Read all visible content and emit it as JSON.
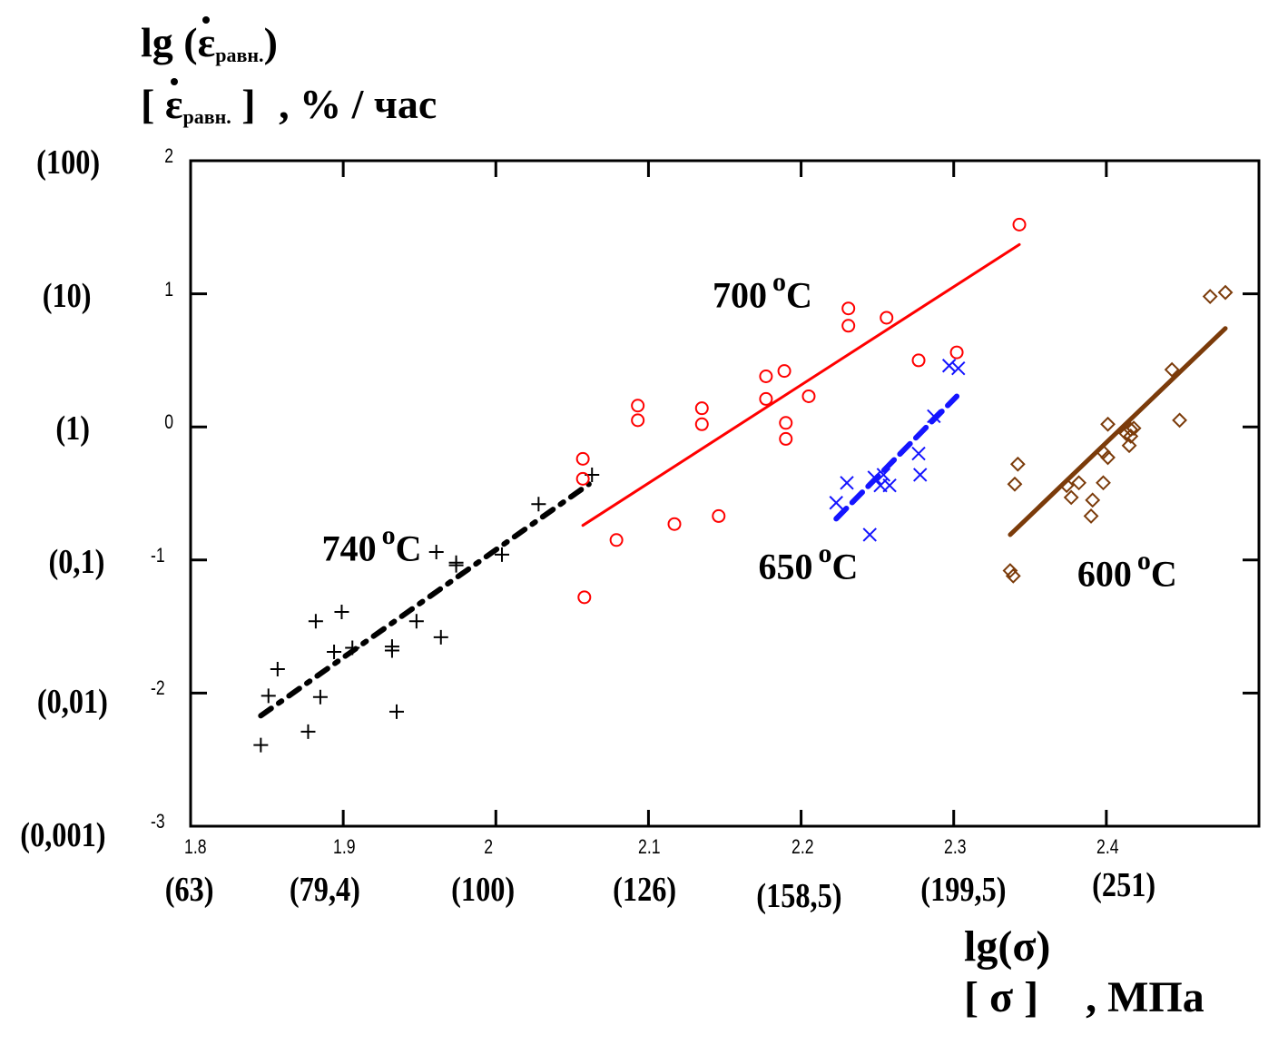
{
  "chart_data": {
    "type": "scatter",
    "title": "",
    "ylabel": {
      "line1_prefix": "lg (",
      "line1_symbol": "ε",
      "line1_sub": "равн.",
      "line1_suffix": ")",
      "line2_open": "[",
      "line2_symbol": "ε",
      "line2_sub": "равн.",
      "line2_close": "]",
      "line2_units": ", % / час"
    },
    "xlabel": {
      "line1": "lg(σ)",
      "line2_bracket": "[ σ ]",
      "line2_units": ", МПа"
    },
    "xlim": [
      1.8,
      2.5
    ],
    "ylim": [
      -3,
      2
    ],
    "grid": false,
    "x_ticks": [
      1.8,
      1.9,
      2.0,
      2.1,
      2.2,
      2.3,
      2.4
    ],
    "x_tick_labels": [
      "1.8",
      "1.9",
      "2",
      "2.1",
      "2.2",
      "2.3",
      "2.4"
    ],
    "x_secondary_labels": [
      "(63)",
      "(79,4)",
      "(100)",
      "(126)",
      "(158,5)",
      "(199,5)",
      "(251)"
    ],
    "y_ticks": [
      2,
      1,
      0,
      -1,
      -2,
      -3
    ],
    "y_tick_labels": [
      "2",
      "1",
      "0",
      "-1",
      "-2",
      "-3"
    ],
    "y_secondary_labels": [
      "(100)",
      "(10)",
      "(1)",
      "(0,1)",
      "(0,01)",
      "(0,001)"
    ],
    "series": [
      {
        "name": "740 °C",
        "label_num": "740",
        "label_unit": "C",
        "label_deg": "o",
        "marker": "plus",
        "color": "#000000",
        "line_style": "dashdot",
        "points": [
          [
            1.846,
            -2.39
          ],
          [
            1.877,
            -2.29
          ],
          [
            1.851,
            -2.02
          ],
          [
            1.885,
            -2.03
          ],
          [
            1.857,
            -1.82
          ],
          [
            1.935,
            -2.14
          ],
          [
            1.894,
            -1.69
          ],
          [
            1.906,
            -1.66
          ],
          [
            1.932,
            -1.68
          ],
          [
            1.932,
            -1.65
          ],
          [
            1.882,
            -1.46
          ],
          [
            1.899,
            -1.39
          ],
          [
            1.948,
            -1.46
          ],
          [
            1.964,
            -1.58
          ],
          [
            1.961,
            -0.94
          ],
          [
            1.974,
            -1.04
          ],
          [
            1.974,
            -1.02
          ],
          [
            2.004,
            -0.96
          ],
          [
            2.028,
            -0.58
          ],
          [
            2.063,
            -0.36
          ]
        ],
        "fit": [
          [
            1.846,
            -2.17
          ],
          [
            2.061,
            -0.43
          ]
        ],
        "label_pos": [
          1.886,
          -1.0
        ]
      },
      {
        "name": "700 °C",
        "label_num": "700",
        "label_unit": "C",
        "label_deg": "o",
        "marker": "circle",
        "color": "#ff0000",
        "line_style": "solid",
        "points": [
          [
            2.343,
            1.52
          ],
          [
            2.231,
            0.89
          ],
          [
            2.231,
            0.76
          ],
          [
            2.256,
            0.82
          ],
          [
            2.277,
            0.5
          ],
          [
            2.302,
            0.56
          ],
          [
            2.177,
            0.38
          ],
          [
            2.189,
            0.42
          ],
          [
            2.177,
            0.21
          ],
          [
            2.205,
            0.23
          ],
          [
            2.093,
            0.16
          ],
          [
            2.093,
            0.05
          ],
          [
            2.135,
            0.14
          ],
          [
            2.135,
            0.02
          ],
          [
            2.19,
            0.03
          ],
          [
            2.19,
            -0.09
          ],
          [
            2.057,
            -0.24
          ],
          [
            2.057,
            -0.39
          ],
          [
            2.079,
            -0.85
          ],
          [
            2.117,
            -0.73
          ],
          [
            2.146,
            -0.67
          ],
          [
            2.058,
            -1.28
          ]
        ],
        "fit": [
          [
            2.057,
            -0.74
          ],
          [
            2.343,
            1.37
          ]
        ],
        "label_pos": [
          2.142,
          0.9
        ]
      },
      {
        "name": "650 °C",
        "label_num": "650",
        "label_unit": "C",
        "label_deg": "o",
        "marker": "cross",
        "color": "#1414ff",
        "line_style": "dashed",
        "points": [
          [
            2.297,
            0.46
          ],
          [
            2.303,
            0.44
          ],
          [
            2.287,
            0.08
          ],
          [
            2.277,
            -0.2
          ],
          [
            2.278,
            -0.36
          ],
          [
            2.23,
            -0.42
          ],
          [
            2.223,
            -0.57
          ],
          [
            2.248,
            -0.38
          ],
          [
            2.254,
            -0.36
          ],
          [
            2.252,
            -0.44
          ],
          [
            2.258,
            -0.44
          ],
          [
            2.245,
            -0.81
          ]
        ],
        "fit": [
          [
            2.223,
            -0.69
          ],
          [
            2.302,
            0.23
          ]
        ],
        "label_pos": [
          2.172,
          -1.14
        ]
      },
      {
        "name": "600 °C",
        "label_num": "600",
        "label_unit": "C",
        "label_deg": "o",
        "marker": "diamond",
        "color": "#7b3b0a",
        "line_style": "solid",
        "points": [
          [
            2.468,
            0.98
          ],
          [
            2.478,
            1.01
          ],
          [
            2.443,
            0.43
          ],
          [
            2.448,
            0.05
          ],
          [
            2.401,
            0.02
          ],
          [
            2.416,
            -0.02
          ],
          [
            2.413,
            -0.05
          ],
          [
            2.418,
            -0.01
          ],
          [
            2.416,
            -0.07
          ],
          [
            2.415,
            -0.14
          ],
          [
            2.398,
            -0.19
          ],
          [
            2.401,
            -0.23
          ],
          [
            2.342,
            -0.28
          ],
          [
            2.34,
            -0.43
          ],
          [
            2.374,
            -0.44
          ],
          [
            2.382,
            -0.42
          ],
          [
            2.398,
            -0.42
          ],
          [
            2.377,
            -0.53
          ],
          [
            2.391,
            -0.55
          ],
          [
            2.39,
            -0.67
          ],
          [
            2.337,
            -1.08
          ],
          [
            2.339,
            -1.12
          ]
        ],
        "fit": [
          [
            2.337,
            -0.81
          ],
          [
            2.478,
            0.74
          ]
        ],
        "label_pos": [
          2.381,
          -1.19
        ]
      }
    ]
  }
}
